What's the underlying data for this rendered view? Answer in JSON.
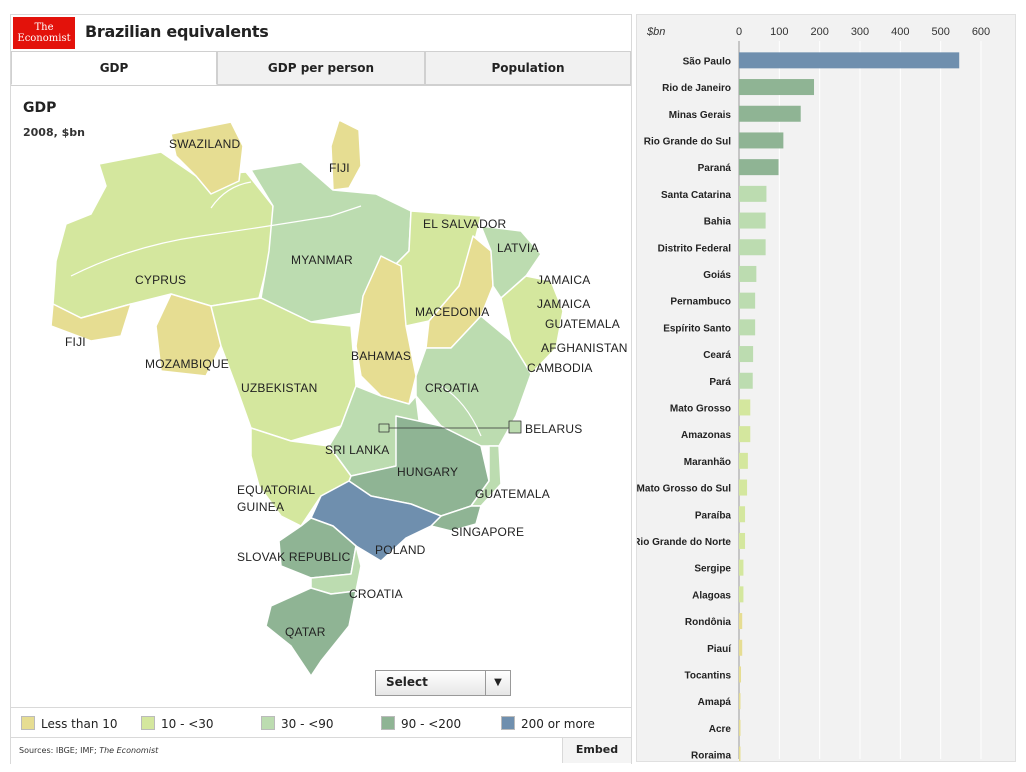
{
  "brand": {
    "logo_top": "The",
    "logo_bottom": "Economist",
    "accent": "#e3120b"
  },
  "title": "Brazilian equivalents",
  "tabs": [
    {
      "label": "GDP",
      "active": true
    },
    {
      "label": "GDP per person",
      "active": false
    },
    {
      "label": "Population",
      "active": false
    }
  ],
  "map": {
    "title": "GDP",
    "subtitle": "2008, $bn",
    "labels": [
      "SWAZILAND",
      "FIJI",
      "EL SALVADOR",
      "LATVIA",
      "MYANMAR",
      "CYPRUS",
      "JAMAICA",
      "JAMAICA",
      "GUATEMALA",
      "MACEDONIA",
      "AFGHANISTAN",
      "FIJI",
      "MOZAMBIQUE",
      "BAHAMAS",
      "CAMBODIA",
      "UZBEKISTAN",
      "CROATIA",
      "BELARUS",
      "SRI LANKA",
      "HUNGARY",
      "EQUATORIAL",
      "GUINEA",
      "GUATEMALA",
      "SINGAPORE",
      "SLOVAK REPUBLIC",
      "POLAND",
      "CROATIA",
      "QATAR"
    ]
  },
  "select": {
    "label": "Select",
    "arrow": "▼"
  },
  "legend": [
    {
      "label": "Less than 10",
      "color": "#e6dd92"
    },
    {
      "label": "10 - <30",
      "color": "#d4e79e"
    },
    {
      "label": "30 - <90",
      "color": "#bcdcb0"
    },
    {
      "label": "90 - <200",
      "color": "#8fb494"
    },
    {
      "label": "200 or more",
      "color": "#6f8fae"
    }
  ],
  "footer": {
    "sources": "Sources: IBGE; IMF; ",
    "sources_italic": "The Economist",
    "embed": "Embed"
  },
  "chart_data": {
    "type": "bar",
    "orientation": "horizontal",
    "unit_label": "$bn",
    "xlim": [
      0,
      600
    ],
    "ticks": [
      0,
      100,
      200,
      300,
      400,
      500,
      600
    ],
    "categories": [
      "São Paulo",
      "Rio de Janeiro",
      "Minas Gerais",
      "Rio Grande do Sul",
      "Paraná",
      "Santa Catarina",
      "Bahia",
      "Distrito Federal",
      "Goiás",
      "Pernambuco",
      "Espírito Santo",
      "Ceará",
      "Pará",
      "Mato Grosso",
      "Amazonas",
      "Maranhão",
      "Mato Grosso do Sul",
      "Paraíba",
      "Rio Grande do Norte",
      "Sergipe",
      "Alagoas",
      "Rondônia",
      "Piauí",
      "Tocantins",
      "Amapá",
      "Acre",
      "Roraima"
    ],
    "values": [
      546,
      186,
      153,
      110,
      98,
      68,
      66,
      66,
      43,
      40,
      40,
      35,
      34,
      28,
      28,
      22,
      20,
      15,
      15,
      11,
      11,
      8,
      8,
      5,
      3,
      3,
      2
    ],
    "colors": [
      "#6f8fae",
      "#8fb494",
      "#8fb494",
      "#8fb494",
      "#8fb494",
      "#bcdcb0",
      "#bcdcb0",
      "#bcdcb0",
      "#bcdcb0",
      "#bcdcb0",
      "#bcdcb0",
      "#bcdcb0",
      "#bcdcb0",
      "#d4e79e",
      "#d4e79e",
      "#d4e79e",
      "#d4e79e",
      "#d4e79e",
      "#d4e79e",
      "#d4e79e",
      "#d4e79e",
      "#e6dd92",
      "#e6dd92",
      "#e6dd92",
      "#e6dd92",
      "#e6dd92",
      "#e6dd92"
    ]
  }
}
